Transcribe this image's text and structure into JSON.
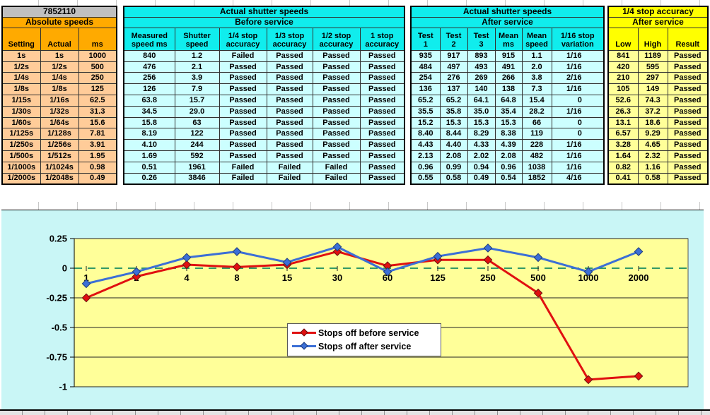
{
  "workbook": {
    "sections": [
      {
        "row1": "7852110",
        "row2": "Absolute speeds",
        "headers": [
          "Setting",
          "Actual",
          "ms"
        ],
        "row1_bg": "#c0c0c0",
        "row2_bg": "#ffaa00",
        "head_bg": "#ffaa00",
        "data_bg": "#ffcc99",
        "col_start": 0
      },
      {
        "row1": "Actual shutter speeds",
        "row2": "Before service",
        "headers": [
          "Measured\nspeed ms",
          "Shutter\nspeed",
          "1/4 stop\naccuracy",
          "1/3 stop\naccuracy",
          "1/2 stop\naccuracy",
          "1 stop\naccuracy"
        ],
        "row1_bg": "#10eded",
        "row2_bg": "#10eded",
        "head_bg": "#10eded",
        "data_bg": "#ccffff",
        "col_start": 3
      },
      {
        "row1": "Actual shutter speeds",
        "row2": "After service",
        "headers": [
          "Test\n1",
          "Test\n2",
          "Test\n3",
          "Mean\nms",
          "Mean\nspeed",
          "1/16 stop\nvariation"
        ],
        "row1_bg": "#10eded",
        "row2_bg": "#10eded",
        "head_bg": "#10eded",
        "data_bg": "#ccffff",
        "col_start": 9
      },
      {
        "row1": "1/4 stop accuracy",
        "row2": "After service",
        "headers": [
          "Low",
          "High",
          "Result"
        ],
        "row1_bg": "#ffff00",
        "row2_bg": "#ffff00",
        "head_bg": "#ffff00",
        "data_bg": "#ffff99",
        "col_start": 15
      }
    ],
    "rows": [
      [
        "1s",
        "1s",
        "1000",
        "840",
        "1.2",
        "Failed",
        "Passed",
        "Passed",
        "Passed",
        "935",
        "917",
        "893",
        "915",
        "1.1",
        "1/16",
        "841",
        "1189",
        "Passed"
      ],
      [
        "1/2s",
        "1/2s",
        "500",
        "476",
        "2.1",
        "Passed",
        "Passed",
        "Passed",
        "Passed",
        "484",
        "497",
        "493",
        "491",
        "2.0",
        "1/16",
        "420",
        "595",
        "Passed"
      ],
      [
        "1/4s",
        "1/4s",
        "250",
        "256",
        "3.9",
        "Passed",
        "Passed",
        "Passed",
        "Passed",
        "254",
        "276",
        "269",
        "266",
        "3.8",
        "2/16",
        "210",
        "297",
        "Passed"
      ],
      [
        "1/8s",
        "1/8s",
        "125",
        "126",
        "7.9",
        "Passed",
        "Passed",
        "Passed",
        "Passed",
        "136",
        "137",
        "140",
        "138",
        "7.3",
        "1/16",
        "105",
        "149",
        "Passed"
      ],
      [
        "1/15s",
        "1/16s",
        "62.5",
        "63.8",
        "15.7",
        "Passed",
        "Passed",
        "Passed",
        "Passed",
        "65.2",
        "65.2",
        "64.1",
        "64.8",
        "15.4",
        "0",
        "52.6",
        "74.3",
        "Passed"
      ],
      [
        "1/30s",
        "1/32s",
        "31.3",
        "34.5",
        "29.0",
        "Passed",
        "Passed",
        "Passed",
        "Passed",
        "35.5",
        "35.8",
        "35.0",
        "35.4",
        "28.2",
        "1/16",
        "26.3",
        "37.2",
        "Passed"
      ],
      [
        "1/60s",
        "1/64s",
        "15.6",
        "15.8",
        "63",
        "Passed",
        "Passed",
        "Passed",
        "Passed",
        "15.2",
        "15.3",
        "15.3",
        "15.3",
        "66",
        "0",
        "13.1",
        "18.6",
        "Passed"
      ],
      [
        "1/125s",
        "1/128s",
        "7.81",
        "8.19",
        "122",
        "Passed",
        "Passed",
        "Passed",
        "Passed",
        "8.40",
        "8.44",
        "8.29",
        "8.38",
        "119",
        "0",
        "6.57",
        "9.29",
        "Passed"
      ],
      [
        "1/250s",
        "1/256s",
        "3.91",
        "4.10",
        "244",
        "Passed",
        "Passed",
        "Passed",
        "Passed",
        "4.43",
        "4.40",
        "4.33",
        "4.39",
        "228",
        "1/16",
        "3.28",
        "4.65",
        "Passed"
      ],
      [
        "1/500s",
        "1/512s",
        "1.95",
        "1.69",
        "592",
        "Passed",
        "Passed",
        "Passed",
        "Passed",
        "2.13",
        "2.08",
        "2.02",
        "2.08",
        "482",
        "1/16",
        "1.64",
        "2.32",
        "Passed"
      ],
      [
        "1/1000s",
        "1/1024s",
        "0.98",
        "0.51",
        "1961",
        "Failed",
        "Failed",
        "Failed",
        "Passed",
        "0.96",
        "0.99",
        "0.94",
        "0.96",
        "1038",
        "1/16",
        "0.82",
        "1.16",
        "Passed"
      ],
      [
        "1/2000s",
        "1/2048s",
        "0.49",
        "0.26",
        "3846",
        "Failed",
        "Failed",
        "Failed",
        "Passed",
        "0.55",
        "0.58",
        "0.49",
        "0.54",
        "1852",
        "4/16",
        "0.41",
        "0.58",
        "Passed"
      ]
    ]
  },
  "chart_data": {
    "type": "line",
    "title": "",
    "categories": [
      "1",
      "2",
      "4",
      "8",
      "15",
      "30",
      "60",
      "125",
      "250",
      "500",
      "1000",
      "2000"
    ],
    "series": [
      {
        "name": "Stops off before service",
        "color": "#e01010",
        "marker_edge": "#6b0f0f",
        "values": [
          -0.25,
          -0.07,
          0.03,
          0.01,
          0.03,
          0.14,
          0.02,
          0.07,
          0.07,
          -0.21,
          -0.94,
          -0.91
        ]
      },
      {
        "name": "Stops off after service",
        "color": "#3c6fd6",
        "marker_edge": "#1d3a7a",
        "values": [
          -0.13,
          -0.03,
          0.09,
          0.14,
          0.05,
          0.18,
          -0.03,
          0.1,
          0.17,
          0.09,
          -0.03,
          0.14
        ]
      }
    ],
    "ylim": [
      -1,
      0.25
    ],
    "yticks": [
      0.25,
      0,
      -0.25,
      -0.5,
      -0.75,
      -1
    ],
    "ytick_labels": [
      "0.25",
      "0",
      "-0.25",
      "-0.5",
      "-0.75",
      "-1"
    ],
    "grid": true,
    "zero_line_color": "#339966",
    "plot_bg": "#ffff99",
    "chart_bg": "#c9f6f6",
    "legend_position": "bottom-center"
  }
}
